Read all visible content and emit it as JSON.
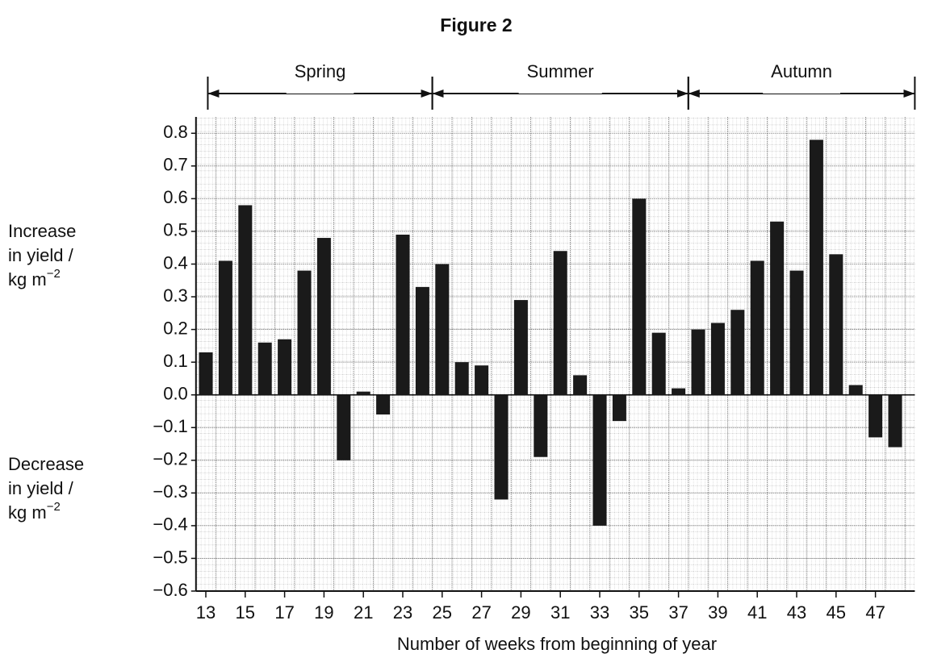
{
  "chart_data": {
    "type": "bar",
    "title": "Figure 2",
    "xlabel": "Number of weeks from beginning of year",
    "ylabel_upper": {
      "lines": [
        "Increase",
        "in yield /"
      ],
      "unit": "kg m",
      "unit_exponent": "−2"
    },
    "ylabel_lower": {
      "lines": [
        "Decrease",
        "in yield /"
      ],
      "unit": "kg m",
      "unit_exponent": "−2"
    },
    "periods": [
      {
        "label": "Spring",
        "start": 13.1,
        "end": 24.5
      },
      {
        "label": "Summer",
        "start": 24.5,
        "end": 37.5
      },
      {
        "label": "Autumn",
        "start": 37.5,
        "end": 49
      }
    ],
    "x": [
      13,
      14,
      15,
      16,
      17,
      18,
      19,
      20,
      21,
      22,
      23,
      24,
      25,
      26,
      27,
      28,
      29,
      30,
      31,
      32,
      33,
      34,
      35,
      36,
      37,
      38,
      39,
      40,
      41,
      42,
      43,
      44,
      45,
      46,
      47,
      48
    ],
    "values": [
      0.13,
      0.41,
      0.58,
      0.16,
      0.17,
      0.38,
      0.48,
      -0.2,
      0.01,
      -0.06,
      0.49,
      0.33,
      0.4,
      0.1,
      0.09,
      -0.32,
      0.29,
      -0.19,
      0.44,
      0.06,
      -0.4,
      -0.08,
      0.6,
      0.19,
      0.02,
      0.2,
      0.22,
      0.26,
      0.41,
      0.53,
      0.38,
      0.78,
      0.43,
      0.03,
      -0.13,
      -0.16
    ],
    "color": "#1a1a1a",
    "xlim": [
      12.5,
      49
    ],
    "xticks": [
      13,
      15,
      17,
      19,
      21,
      23,
      25,
      27,
      29,
      31,
      33,
      35,
      37,
      39,
      41,
      43,
      45,
      47
    ],
    "ylim": [
      -0.6,
      0.85
    ],
    "yticks": [
      {
        "value": -0.6,
        "label": "−0.6"
      },
      {
        "value": -0.5,
        "label": "−0.5"
      },
      {
        "value": -0.4,
        "label": "−0.4"
      },
      {
        "value": -0.3,
        "label": "−0.3"
      },
      {
        "value": -0.2,
        "label": "−0.2"
      },
      {
        "value": -0.1,
        "label": "−0.1"
      },
      {
        "value": 0,
        "label": "0.0"
      },
      0.1,
      0.2,
      0.3,
      0.4,
      0.5,
      0.6,
      0.7,
      0.8
    ],
    "grid": true
  }
}
